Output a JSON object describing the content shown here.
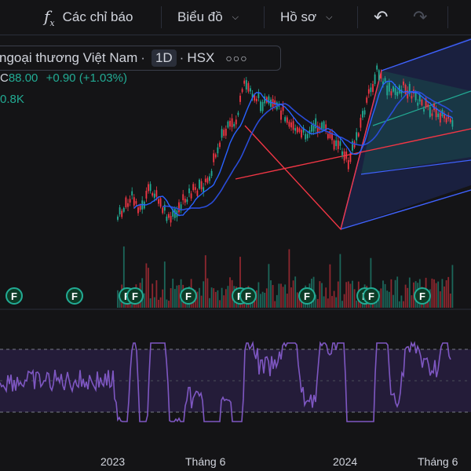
{
  "toolbar": {
    "indicators_label": "Các chỉ báo",
    "chart_label": "Biểu đồ",
    "profile_label": "Hồ sơ"
  },
  "legend": {
    "symbol_name": "ngoại thương Việt Nam",
    "interval": "1D",
    "exchange": "HSX",
    "close_prefix": "C",
    "close": "88.00",
    "change": "+0.90",
    "change_pct": "(+1.03%)",
    "volume": "0.8K"
  },
  "x_axis": {
    "labels": [
      "2023",
      "Tháng 6",
      "2024",
      "Tháng 6"
    ]
  },
  "events": {
    "marker_letter": "F",
    "count": 11
  },
  "colors": {
    "up": "#22ab94",
    "down": "#f23645",
    "ma_fast": "#2962ff",
    "ma_slow": "#2a4cd8",
    "rsi": "#7e57c2",
    "channel_blue": "#3f62ff",
    "channel_red": "#f23645",
    "channel_teal": "#22ab94"
  },
  "chart_data": {
    "type": "candlestick",
    "price_path": [
      {
        "x": 0.25,
        "y": 0.9
      },
      {
        "x": 0.28,
        "y": 0.78
      },
      {
        "x": 0.3,
        "y": 0.85
      },
      {
        "x": 0.32,
        "y": 0.72
      },
      {
        "x": 0.36,
        "y": 0.92
      },
      {
        "x": 0.4,
        "y": 0.76
      },
      {
        "x": 0.44,
        "y": 0.7
      },
      {
        "x": 0.47,
        "y": 0.42
      },
      {
        "x": 0.5,
        "y": 0.35
      },
      {
        "x": 0.52,
        "y": 0.12
      },
      {
        "x": 0.55,
        "y": 0.22
      },
      {
        "x": 0.6,
        "y": 0.28
      },
      {
        "x": 0.64,
        "y": 0.42
      },
      {
        "x": 0.68,
        "y": 0.36
      },
      {
        "x": 0.72,
        "y": 0.48
      },
      {
        "x": 0.74,
        "y": 0.58
      },
      {
        "x": 0.76,
        "y": 0.4
      },
      {
        "x": 0.78,
        "y": 0.22
      },
      {
        "x": 0.8,
        "y": 0.05
      },
      {
        "x": 0.83,
        "y": 0.18
      },
      {
        "x": 0.86,
        "y": 0.14
      },
      {
        "x": 0.9,
        "y": 0.25
      },
      {
        "x": 0.94,
        "y": 0.3
      },
      {
        "x": 0.96,
        "y": 0.37
      }
    ],
    "rsi_range": [
      0,
      100
    ],
    "rsi_bands": [
      30,
      70
    ]
  }
}
